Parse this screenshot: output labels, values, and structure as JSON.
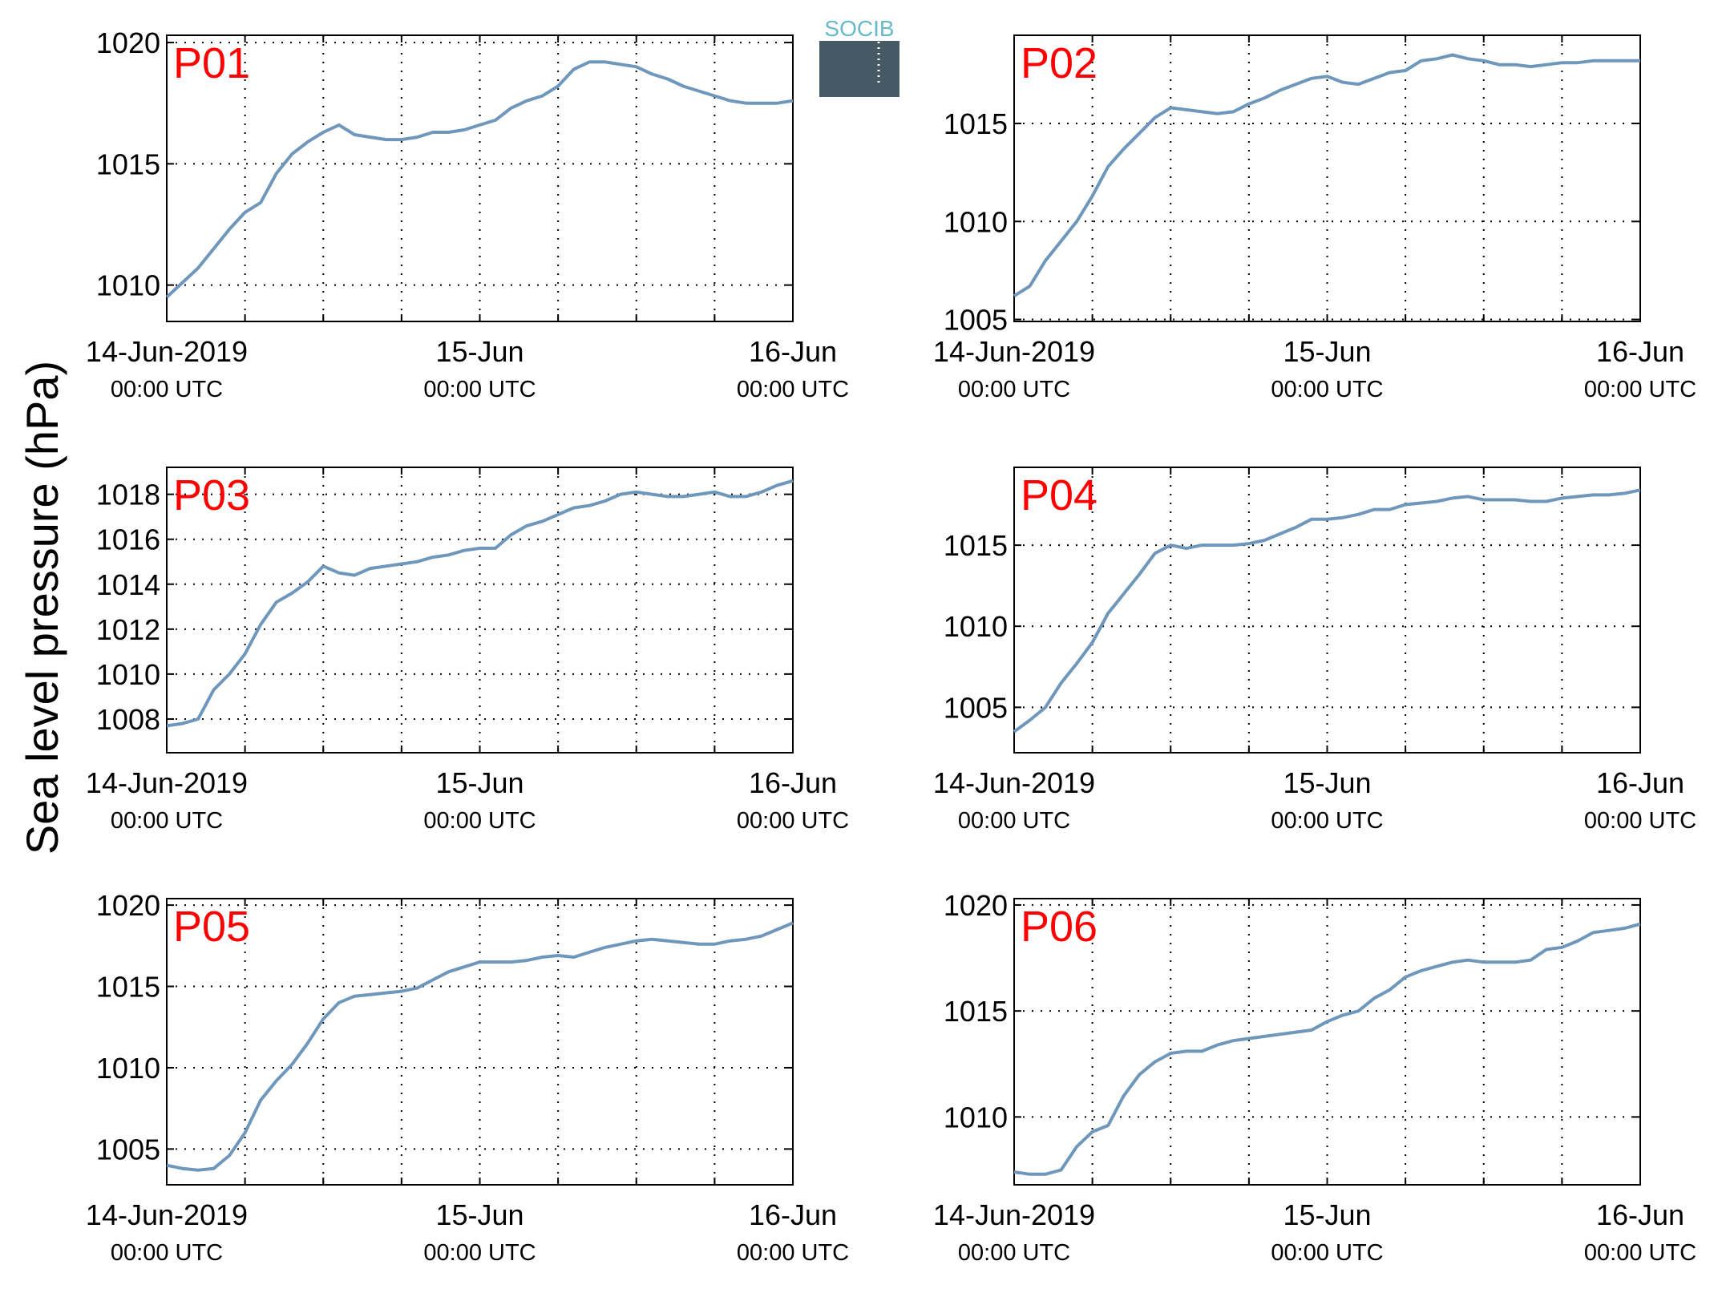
{
  "figure": {
    "ylabel": "Sea level pressure (hPa)",
    "logo_text": "SOCIB",
    "colors": {
      "line": "#6f97bb",
      "panel_label": "#ff0000",
      "axis": "#000000",
      "grid": "#000000"
    }
  },
  "x_ticks": [
    {
      "day": 0,
      "label": "14-Jun-2019",
      "sub": "00:00 UTC"
    },
    {
      "day": 1,
      "label": "15-Jun",
      "sub": "00:00 UTC"
    },
    {
      "day": 2,
      "label": "16-Jun",
      "sub": "00:00 UTC"
    }
  ],
  "chart_data": [
    {
      "type": "line",
      "title": "P01",
      "xlabel": "",
      "ylabel": "Sea level pressure (hPa)",
      "xlim": [
        0,
        2
      ],
      "ylim": [
        1008.5,
        1020.3
      ],
      "yticks": [
        1010,
        1015,
        1020
      ],
      "grid": true,
      "series": [
        {
          "x": [
            0,
            0.05,
            0.1,
            0.15,
            0.2,
            0.25,
            0.3,
            0.35,
            0.4,
            0.45,
            0.5,
            0.55,
            0.6,
            0.65,
            0.7,
            0.75,
            0.8,
            0.85,
            0.9,
            0.95,
            1.0,
            1.05,
            1.1,
            1.15,
            1.2,
            1.25,
            1.3,
            1.35,
            1.4,
            1.45,
            1.5,
            1.55,
            1.6,
            1.65,
            1.7,
            1.75,
            1.8,
            1.85,
            1.9,
            1.95,
            2.0
          ],
          "y": [
            1009.5,
            1010.1,
            1010.7,
            1011.5,
            1012.3,
            1013.0,
            1013.4,
            1014.6,
            1015.4,
            1015.9,
            1016.3,
            1016.6,
            1016.2,
            1016.1,
            1016.0,
            1016.0,
            1016.1,
            1016.3,
            1016.3,
            1016.4,
            1016.6,
            1016.8,
            1017.3,
            1017.6,
            1017.8,
            1018.2,
            1018.9,
            1019.2,
            1019.2,
            1019.1,
            1019.0,
            1018.7,
            1018.5,
            1018.2,
            1018.0,
            1017.8,
            1017.6,
            1017.5,
            1017.5,
            1017.5,
            1017.6
          ]
        }
      ]
    },
    {
      "type": "line",
      "title": "P02",
      "xlabel": "",
      "ylabel": "Sea level pressure (hPa)",
      "xlim": [
        0,
        2
      ],
      "ylim": [
        1004.9,
        1019.5
      ],
      "yticks": [
        1005,
        1010,
        1015
      ],
      "grid": true,
      "series": [
        {
          "x": [
            0,
            0.05,
            0.1,
            0.15,
            0.2,
            0.25,
            0.3,
            0.35,
            0.4,
            0.45,
            0.5,
            0.55,
            0.6,
            0.65,
            0.7,
            0.75,
            0.8,
            0.85,
            0.9,
            0.95,
            1.0,
            1.05,
            1.1,
            1.15,
            1.2,
            1.25,
            1.3,
            1.35,
            1.4,
            1.45,
            1.5,
            1.55,
            1.6,
            1.65,
            1.7,
            1.75,
            1.8,
            1.85,
            1.9,
            1.95,
            2.0
          ],
          "y": [
            1006.2,
            1006.7,
            1008.0,
            1009.0,
            1010.0,
            1011.3,
            1012.8,
            1013.7,
            1014.5,
            1015.3,
            1015.8,
            1015.7,
            1015.6,
            1015.5,
            1015.6,
            1016.0,
            1016.3,
            1016.7,
            1017.0,
            1017.3,
            1017.4,
            1017.1,
            1017.0,
            1017.3,
            1017.6,
            1017.7,
            1018.2,
            1018.3,
            1018.5,
            1018.3,
            1018.2,
            1018.0,
            1018.0,
            1017.9,
            1018.0,
            1018.1,
            1018.1,
            1018.2,
            1018.2,
            1018.2,
            1018.2
          ]
        }
      ]
    },
    {
      "type": "line",
      "title": "P03",
      "xlabel": "",
      "ylabel": "Sea level pressure (hPa)",
      "xlim": [
        0,
        2
      ],
      "ylim": [
        1006.5,
        1019.2
      ],
      "yticks": [
        1008,
        1010,
        1012,
        1014,
        1016,
        1018
      ],
      "grid": true,
      "series": [
        {
          "x": [
            0,
            0.05,
            0.1,
            0.15,
            0.2,
            0.25,
            0.3,
            0.35,
            0.4,
            0.45,
            0.5,
            0.55,
            0.6,
            0.65,
            0.7,
            0.75,
            0.8,
            0.85,
            0.9,
            0.95,
            1.0,
            1.05,
            1.1,
            1.15,
            1.2,
            1.25,
            1.3,
            1.35,
            1.4,
            1.45,
            1.5,
            1.55,
            1.6,
            1.65,
            1.7,
            1.75,
            1.8,
            1.85,
            1.9,
            1.95,
            2.0
          ],
          "y": [
            1007.7,
            1007.8,
            1008.0,
            1009.3,
            1010.0,
            1010.9,
            1012.2,
            1013.2,
            1013.6,
            1014.1,
            1014.8,
            1014.5,
            1014.4,
            1014.7,
            1014.8,
            1014.9,
            1015.0,
            1015.2,
            1015.3,
            1015.5,
            1015.6,
            1015.6,
            1016.2,
            1016.6,
            1016.8,
            1017.1,
            1017.4,
            1017.5,
            1017.7,
            1018.0,
            1018.1,
            1018.0,
            1017.9,
            1017.9,
            1018.0,
            1018.1,
            1017.9,
            1017.9,
            1018.1,
            1018.4,
            1018.6
          ]
        }
      ]
    },
    {
      "type": "line",
      "title": "P04",
      "xlabel": "",
      "ylabel": "Sea level pressure (hPa)",
      "xlim": [
        0,
        2
      ],
      "ylim": [
        1002.2,
        1019.8
      ],
      "yticks": [
        1005,
        1010,
        1015
      ],
      "grid": true,
      "series": [
        {
          "x": [
            0,
            0.05,
            0.1,
            0.15,
            0.2,
            0.25,
            0.3,
            0.35,
            0.4,
            0.45,
            0.5,
            0.55,
            0.6,
            0.65,
            0.7,
            0.75,
            0.8,
            0.85,
            0.9,
            0.95,
            1.0,
            1.05,
            1.1,
            1.15,
            1.2,
            1.25,
            1.3,
            1.35,
            1.4,
            1.45,
            1.5,
            1.55,
            1.6,
            1.65,
            1.7,
            1.75,
            1.8,
            1.85,
            1.9,
            1.95,
            2.0
          ],
          "y": [
            1003.5,
            1004.2,
            1005.0,
            1006.5,
            1007.7,
            1009.0,
            1010.8,
            1012.0,
            1013.2,
            1014.5,
            1015.0,
            1014.8,
            1015.0,
            1015.0,
            1015.0,
            1015.1,
            1015.3,
            1015.7,
            1016.1,
            1016.6,
            1016.6,
            1016.7,
            1016.9,
            1017.2,
            1017.2,
            1017.5,
            1017.6,
            1017.7,
            1017.9,
            1018.0,
            1017.8,
            1017.8,
            1017.8,
            1017.7,
            1017.7,
            1017.9,
            1018.0,
            1018.1,
            1018.1,
            1018.2,
            1018.4
          ]
        }
      ]
    },
    {
      "type": "line",
      "title": "P05",
      "xlabel": "",
      "ylabel": "Sea level pressure (hPa)",
      "xlim": [
        0,
        2
      ],
      "ylim": [
        1002.8,
        1020.4
      ],
      "yticks": [
        1005,
        1010,
        1015,
        1020
      ],
      "grid": true,
      "series": [
        {
          "x": [
            0,
            0.05,
            0.1,
            0.15,
            0.2,
            0.25,
            0.3,
            0.35,
            0.4,
            0.45,
            0.5,
            0.55,
            0.6,
            0.65,
            0.7,
            0.75,
            0.8,
            0.85,
            0.9,
            0.95,
            1.0,
            1.05,
            1.1,
            1.15,
            1.2,
            1.25,
            1.3,
            1.35,
            1.4,
            1.45,
            1.5,
            1.55,
            1.6,
            1.65,
            1.7,
            1.75,
            1.8,
            1.85,
            1.9,
            1.95,
            2.0
          ],
          "y": [
            1004.0,
            1003.8,
            1003.7,
            1003.8,
            1004.6,
            1006.0,
            1008.0,
            1009.2,
            1010.2,
            1011.5,
            1013.0,
            1014.0,
            1014.4,
            1014.5,
            1014.6,
            1014.7,
            1014.9,
            1015.4,
            1015.9,
            1016.2,
            1016.5,
            1016.5,
            1016.5,
            1016.6,
            1016.8,
            1016.9,
            1016.8,
            1017.1,
            1017.4,
            1017.6,
            1017.8,
            1017.9,
            1017.8,
            1017.7,
            1017.6,
            1017.6,
            1017.8,
            1017.9,
            1018.1,
            1018.5,
            1018.9
          ]
        }
      ]
    },
    {
      "type": "line",
      "title": "P06",
      "xlabel": "",
      "ylabel": "Sea level pressure (hPa)",
      "xlim": [
        0,
        2
      ],
      "ylim": [
        1006.8,
        1020.3
      ],
      "yticks": [
        1010,
        1015,
        1020
      ],
      "grid": true,
      "series": [
        {
          "x": [
            0,
            0.05,
            0.1,
            0.15,
            0.2,
            0.25,
            0.3,
            0.35,
            0.4,
            0.45,
            0.5,
            0.55,
            0.6,
            0.65,
            0.7,
            0.75,
            0.8,
            0.85,
            0.9,
            0.95,
            1.0,
            1.05,
            1.1,
            1.15,
            1.2,
            1.25,
            1.3,
            1.35,
            1.4,
            1.45,
            1.5,
            1.55,
            1.6,
            1.65,
            1.7,
            1.75,
            1.8,
            1.85,
            1.9,
            1.95,
            2.0
          ],
          "y": [
            1007.4,
            1007.3,
            1007.3,
            1007.5,
            1008.6,
            1009.3,
            1009.6,
            1011.0,
            1012.0,
            1012.6,
            1013.0,
            1013.1,
            1013.1,
            1013.4,
            1013.6,
            1013.7,
            1013.8,
            1013.9,
            1014.0,
            1014.1,
            1014.5,
            1014.8,
            1015.0,
            1015.6,
            1016.0,
            1016.6,
            1016.9,
            1017.1,
            1017.3,
            1017.4,
            1017.3,
            1017.3,
            1017.3,
            1017.4,
            1017.9,
            1018.0,
            1018.3,
            1018.7,
            1018.8,
            1018.9,
            1019.1
          ]
        }
      ]
    }
  ]
}
